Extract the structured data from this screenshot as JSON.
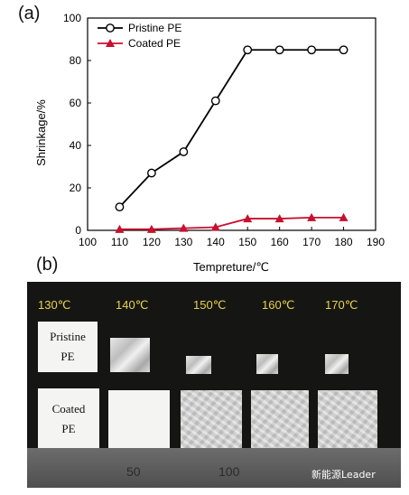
{
  "panel_a_label": "(a)",
  "panel_b_label": "(b)",
  "chart_data": {
    "type": "line",
    "xlabel": "Tempreture/℃",
    "ylabel": "Shrinkage/%",
    "xlim": [
      100,
      190
    ],
    "ylim": [
      0,
      100
    ],
    "xticks": [
      "100",
      "110",
      "120",
      "130",
      "140",
      "150",
      "160",
      "170",
      "180",
      "190"
    ],
    "yticks": [
      "0",
      "20",
      "40",
      "60",
      "80",
      "100"
    ],
    "x": [
      110,
      120,
      130,
      140,
      150,
      160,
      170,
      180
    ],
    "series": [
      {
        "name": "Pristine PE",
        "color": "#000000",
        "marker": "open-circle",
        "values": [
          11,
          27,
          37,
          61,
          85,
          85,
          85,
          85
        ]
      },
      {
        "name": "Coated PE",
        "color": "#c8102e",
        "marker": "filled-triangle",
        "values": [
          0.5,
          0.5,
          1,
          1.5,
          5.5,
          5.5,
          6,
          6
        ]
      }
    ],
    "legend_position": "top-left",
    "grid": false
  },
  "photo": {
    "temperatures": [
      "130℃",
      "140℃",
      "150℃",
      "160℃",
      "170℃"
    ],
    "row_labels": [
      "Pristine PE",
      "Coated PE"
    ],
    "pristine_label_lines": [
      "Pristine",
      "PE"
    ],
    "coated_label_lines": [
      "Coated",
      "PE"
    ],
    "ruler_numbers": [
      "50",
      "100"
    ]
  },
  "watermark": "新能源Leader"
}
